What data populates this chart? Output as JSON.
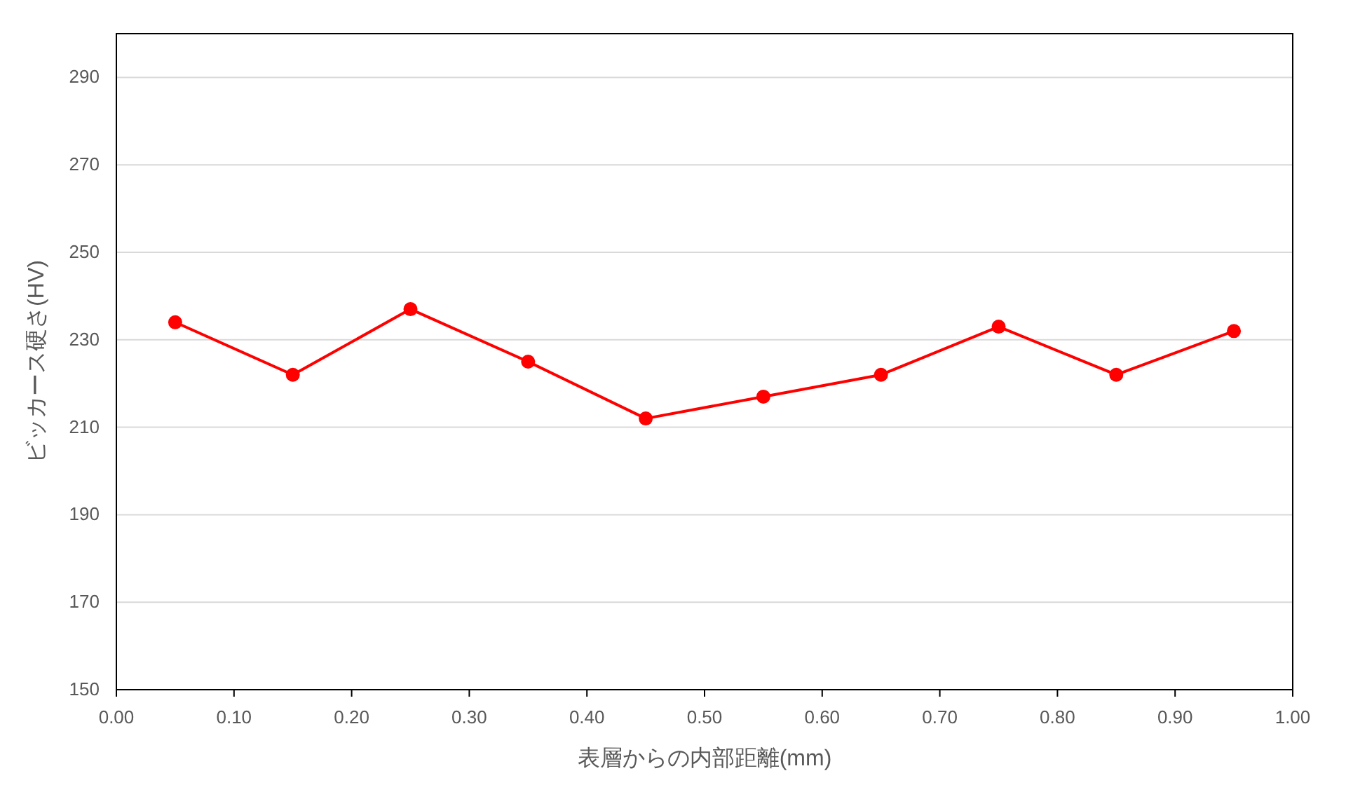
{
  "chart_data": {
    "type": "line",
    "xlabel": "表層からの内部距離(mm)",
    "ylabel": "ビッカース硬さ(HV)",
    "x": [
      0.05,
      0.15,
      0.25,
      0.35,
      0.45,
      0.55,
      0.65,
      0.75,
      0.85,
      0.95
    ],
    "series": [
      {
        "color": "#ff0000",
        "values": [
          234,
          222,
          237,
          225,
          212,
          217,
          222,
          233,
          222,
          232
        ]
      }
    ],
    "xlim": [
      0,
      1
    ],
    "ylim": [
      150,
      300
    ],
    "xticks": [
      {
        "value": 0,
        "label": "0.00"
      },
      {
        "value": 0.1,
        "label": "0.10"
      },
      {
        "value": 0.2,
        "label": "0.20"
      },
      {
        "value": 0.3,
        "label": "0.30"
      },
      {
        "value": 0.4,
        "label": "0.40"
      },
      {
        "value": 0.5,
        "label": "0.50"
      },
      {
        "value": 0.6,
        "label": "0.60"
      },
      {
        "value": 0.7,
        "label": "0.70"
      },
      {
        "value": 0.8,
        "label": "0.80"
      },
      {
        "value": 0.9,
        "label": "0.90"
      },
      {
        "value": 1,
        "label": "1.00"
      }
    ],
    "yticks": [
      150,
      170,
      190,
      210,
      230,
      250,
      270,
      290
    ],
    "grid": "y",
    "marker": "circle",
    "line_style": "solid"
  }
}
